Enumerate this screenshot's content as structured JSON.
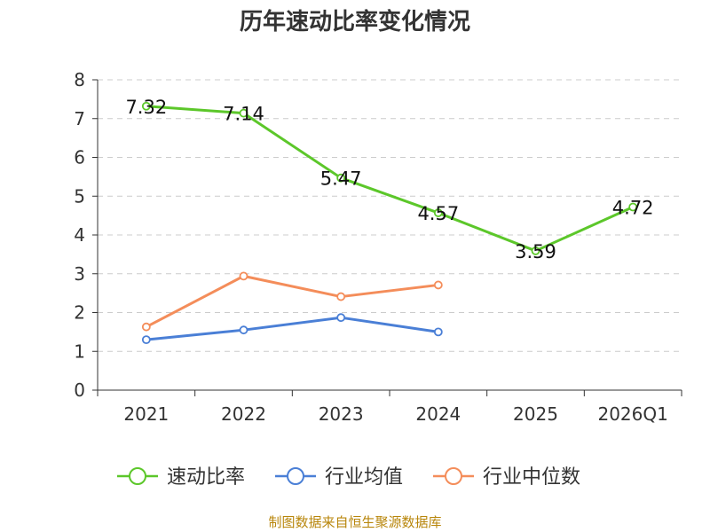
{
  "chart_data": {
    "type": "line",
    "title": "历年速动比率变化情况",
    "categories": [
      "2021",
      "2022",
      "2023",
      "2024",
      "2025",
      "2026Q1"
    ],
    "ylim": [
      0,
      8
    ],
    "yticks": [
      0,
      1,
      2,
      3,
      4,
      5,
      6,
      7,
      8
    ],
    "grid": true,
    "legend_position": "bottom",
    "series": [
      {
        "name": "速动比率",
        "color": "#5cc72a",
        "values": [
          7.32,
          7.14,
          5.47,
          4.57,
          3.59,
          4.72
        ],
        "labels": [
          "7.32",
          "7.14",
          "5.47",
          "4.57",
          "3.59",
          "4.72"
        ]
      },
      {
        "name": "行业均值",
        "color": "#4a7fd6",
        "values": [
          1.3,
          1.55,
          1.87,
          1.5,
          null,
          null
        ]
      },
      {
        "name": "行业中位数",
        "color": "#f48d5a",
        "values": [
          1.63,
          2.94,
          2.41,
          2.71,
          null,
          null
        ]
      }
    ]
  },
  "footer": "制图数据来自恒生聚源数据库"
}
